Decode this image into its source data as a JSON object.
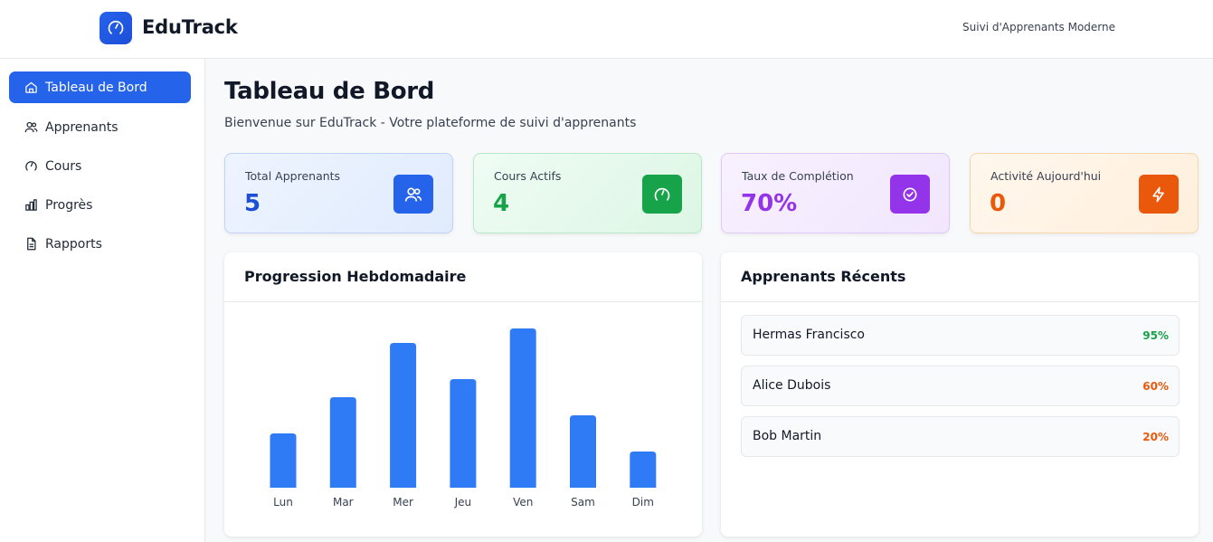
{
  "app": {
    "name": "EduTrack",
    "tagline": "Suivi d'Apprenants Moderne"
  },
  "sidebar": {
    "items": [
      {
        "label": "Tableau de Bord",
        "icon": "home-icon",
        "active": true
      },
      {
        "label": "Apprenants",
        "icon": "users-icon",
        "active": false
      },
      {
        "label": "Cours",
        "icon": "gauge-icon",
        "active": false
      },
      {
        "label": "Progrès",
        "icon": "bar-chart-icon",
        "active": false
      },
      {
        "label": "Rapports",
        "icon": "document-icon",
        "active": false
      }
    ]
  },
  "page": {
    "title": "Tableau de Bord",
    "subtitle": "Bienvenue sur EduTrack - Votre plateforme de suivi d'apprenants"
  },
  "stats": [
    {
      "label": "Total Apprenants",
      "value": "5",
      "icon": "users-icon",
      "color": "#2563eb"
    },
    {
      "label": "Cours Actifs",
      "value": "4",
      "icon": "gauge-icon",
      "color": "#16a34a"
    },
    {
      "label": "Taux de Complétion",
      "value": "70%",
      "icon": "check-circle-icon",
      "color": "#9333ea"
    },
    {
      "label": "Activité Aujourd'hui",
      "value": "0",
      "icon": "lightning-icon",
      "color": "#ea580c"
    }
  ],
  "weekly": {
    "title": "Progression Hebdomadaire"
  },
  "chart_data": {
    "type": "bar",
    "categories": [
      "Lun",
      "Mar",
      "Mer",
      "Jeu",
      "Ven",
      "Sam",
      "Dim"
    ],
    "values": [
      30,
      50,
      80,
      60,
      88,
      40,
      20
    ],
    "ylim": [
      0,
      100
    ],
    "grid": false,
    "color": "#2f7bf6"
  },
  "recent": {
    "title": "Apprenants Récents",
    "learners": [
      {
        "name": "Hermas Francisco",
        "percent": "95%",
        "color": "#16a34a"
      },
      {
        "name": "Alice Dubois",
        "percent": "60%",
        "color": "#ea580c"
      },
      {
        "name": "Bob Martin",
        "percent": "20%",
        "color": "#ea580c"
      }
    ]
  }
}
